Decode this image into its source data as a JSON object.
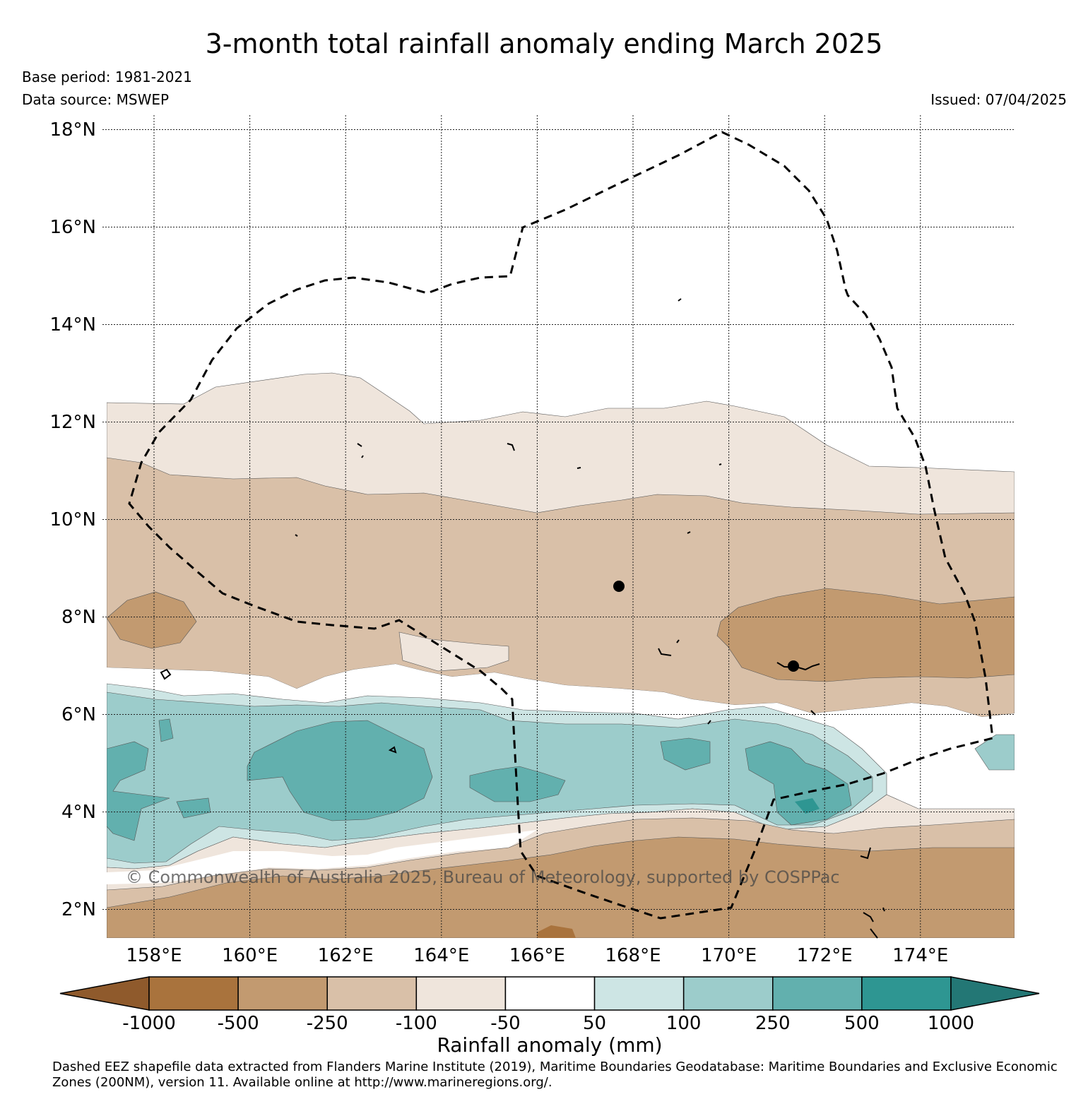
{
  "title": "3-month total rainfall anomaly ending March 2025",
  "base_period": "Base period: 1981-2021",
  "data_source": "Data source: MSWEP",
  "issued": "Issued: 07/04/2025",
  "copyright": "© Commonwealth of Australia 2025, Bureau of Meteorology, supported by COSPPac",
  "map": {
    "lon_range": [
      157.0,
      176.0
    ],
    "lat_range": [
      1.4,
      18.2
    ],
    "lat_ticks": [
      "18°N",
      "16°N",
      "14°N",
      "12°N",
      "10°N",
      "8°N",
      "6°N",
      "4°N",
      "2°N"
    ],
    "lon_ticks": [
      "158°E",
      "160°E",
      "162°E",
      "164°E",
      "166°E",
      "168°E",
      "170°E",
      "172°E",
      "174°E"
    ],
    "gridlines": true,
    "eez_boundary": "dashed"
  },
  "colorbar": {
    "title": "Rainfall anomaly (mm)",
    "labels": [
      "-1000",
      "-500",
      "-250",
      "-100",
      "-50",
      "50",
      "100",
      "250",
      "500",
      "1000"
    ],
    "colors": [
      "#8f5a2c",
      "#a9733d",
      "#c29a70",
      "#d9c0a8",
      "#efe5dc",
      "#ffffff",
      "#cde5e4",
      "#9ccccb",
      "#62b0ae",
      "#2e9692",
      "#237775"
    ]
  },
  "footer": "Dashed EEZ shapefile data extracted from Flanders Marine Institute (2019), Maritime Boundaries Geodatabase: Maritime Boundaries and Exclusive Economic Zones (200NM), version 11. Available online at http://www.marineregions.org/."
}
